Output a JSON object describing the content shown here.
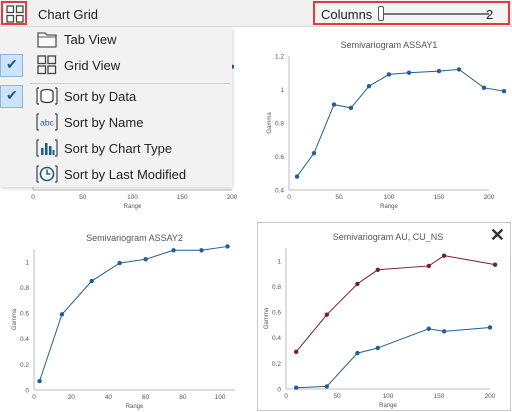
{
  "toolbar": {
    "title": "Chart Grid",
    "grid_icon": "grid-icon",
    "columns_label": "Columns",
    "columns_value": "2",
    "columns_value_num": 2
  },
  "menu": {
    "items": [
      {
        "label": "Tab View",
        "icon": "folder-tab-icon",
        "checked": false
      },
      {
        "label": "Grid View",
        "icon": "grid-view-icon",
        "checked": true
      },
      {
        "label": "Sort by Data",
        "icon": "database-icon",
        "checked": true
      },
      {
        "label": "Sort by Name",
        "icon": "abc-icon",
        "checked": false
      },
      {
        "label": "Sort by Chart Type",
        "icon": "bar-chart-icon",
        "checked": false
      },
      {
        "label": "Sort by Last Modified",
        "icon": "clock-icon",
        "checked": false
      }
    ]
  },
  "colors": {
    "series_blue": "#1f5f99",
    "series_red": "#7a1f2e",
    "highlight": "#e23b3b"
  },
  "close_icon": "close-icon",
  "chart_data": [
    {
      "type": "line",
      "title": "",
      "xlabel": "Range",
      "ylabel": "",
      "xlim": [
        0,
        200
      ],
      "xticks": [
        "0",
        "50",
        "100",
        "150",
        "200"
      ],
      "series": [
        {
          "x": [
            200
          ],
          "y": [
            1.0
          ]
        }
      ]
    },
    {
      "type": "line",
      "title": "Semivariogram ASSAY1",
      "xlabel": "Range",
      "ylabel": "Gamma",
      "xlim": [
        0,
        200
      ],
      "ylim": [
        0.4,
        1.2
      ],
      "xticks": [
        "0",
        "50",
        "100",
        "150",
        "200"
      ],
      "yticks": [
        "0.4",
        "0.6",
        "0.8",
        "1",
        "1.2"
      ],
      "series": [
        {
          "x": [
            8,
            25,
            45,
            62,
            80,
            100,
            120,
            150,
            170,
            195,
            215
          ],
          "y": [
            0.48,
            0.62,
            0.91,
            0.89,
            1.02,
            1.09,
            1.1,
            1.11,
            1.12,
            1.01,
            0.99
          ]
        }
      ]
    },
    {
      "type": "line",
      "title": "Semivariogram ASSAY2",
      "xlabel": "Range",
      "ylabel": "Gamma",
      "xlim": [
        0,
        108
      ],
      "ylim": [
        0,
        1.1
      ],
      "xticks": [
        "0",
        "20",
        "40",
        "60",
        "80",
        "100"
      ],
      "yticks": [
        "0",
        "0.2",
        "0.4",
        "0.6",
        "0.8",
        "1"
      ],
      "series": [
        {
          "x": [
            3,
            15,
            31,
            46,
            60,
            75,
            90,
            104
          ],
          "y": [
            0.07,
            0.59,
            0.85,
            0.99,
            1.02,
            1.09,
            1.09,
            1.12
          ]
        }
      ]
    },
    {
      "type": "line",
      "title": "Semivariogram AU, CU_NS",
      "xlabel": "Range",
      "ylabel": "Gamma",
      "xlim": [
        0,
        200
      ],
      "ylim": [
        0,
        1.1
      ],
      "xticks": [
        "0",
        "50",
        "100",
        "150",
        "200"
      ],
      "yticks": [
        "0",
        "0.2",
        "0.4",
        "0.6",
        "0.8",
        "1"
      ],
      "series": [
        {
          "x": [
            10,
            40,
            70,
            90,
            140,
            155,
            205
          ],
          "y": [
            0.29,
            0.58,
            0.82,
            0.93,
            0.96,
            1.04,
            0.97
          ]
        },
        {
          "x": [
            10,
            40,
            70,
            90,
            140,
            155,
            200
          ],
          "y": [
            0.01,
            0.02,
            0.28,
            0.32,
            0.47,
            0.45,
            0.48
          ]
        }
      ]
    }
  ]
}
